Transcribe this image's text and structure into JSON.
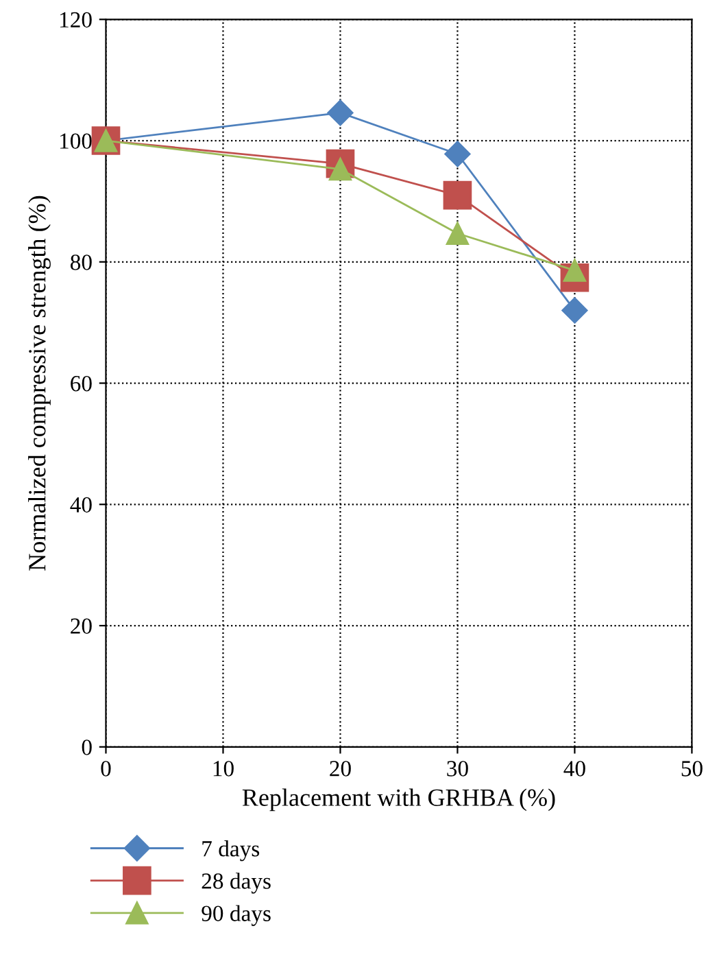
{
  "chart_data": {
    "type": "line",
    "xlabel": "Replacement with GRHBA (%)",
    "ylabel": "Normalized compressive strength (%)",
    "x": [
      0,
      20,
      30,
      40
    ],
    "series": [
      {
        "name": "7 days",
        "color": "#4f81bd",
        "marker": "diamond",
        "values": [
          100,
          104.6,
          97.8,
          72.0
        ]
      },
      {
        "name": "28 days",
        "color": "#c0504d",
        "marker": "square",
        "values": [
          100,
          96.2,
          91.0,
          77.4
        ]
      },
      {
        "name": "90 days",
        "color": "#9bbb59",
        "marker": "triangle",
        "values": [
          100,
          95.3,
          84.7,
          78.6
        ]
      }
    ],
    "xlim": [
      0,
      50
    ],
    "xticks": [
      0,
      10,
      20,
      30,
      40,
      50
    ],
    "ylim": [
      0,
      120
    ],
    "yticks": [
      0,
      20,
      40,
      60,
      80,
      100,
      120
    ],
    "grid": true,
    "legend": "bottom left",
    "line_style": "solid"
  }
}
